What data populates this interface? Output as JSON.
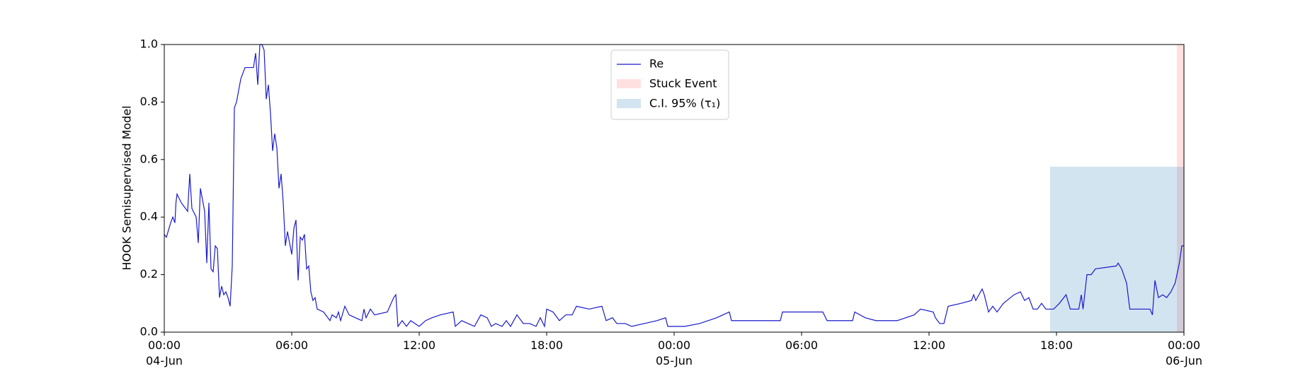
{
  "chart_data": {
    "type": "line",
    "ylabel": "HOOK Semisupervised Model",
    "xlim": [
      "1900-06-04 00:00",
      "1900-06-06 00:00"
    ],
    "xticks": [
      {
        "value": "1900-06-04 00:00",
        "label": "00:00\n04-Jun\n1900"
      },
      {
        "value": "1900-06-04 06:00",
        "label": "06:00"
      },
      {
        "value": "1900-06-04 12:00",
        "label": "12:00"
      },
      {
        "value": "1900-06-04 18:00",
        "label": "18:00"
      },
      {
        "value": "1900-06-05 00:00",
        "label": "00:00\n05-Jun"
      },
      {
        "value": "1900-06-05 06:00",
        "label": "06:00"
      },
      {
        "value": "1900-06-05 12:00",
        "label": "12:00"
      },
      {
        "value": "1900-06-05 18:00",
        "label": "18:00"
      },
      {
        "value": "1900-06-06 00:00",
        "label": "00:00\n06-Jun"
      }
    ],
    "ylim": [
      0,
      1
    ],
    "yticks": [
      {
        "value": 0,
        "label": "0.0"
      },
      0.2,
      0.4,
      0.6,
      0.8,
      {
        "value": 1,
        "label": "1.0"
      }
    ],
    "legend": "upper center",
    "spans": [
      {
        "name": "Stuck Event",
        "color": "#ff0000",
        "alpha": 0.12,
        "x": [
          "1900-06-05 23:40",
          "1900-06-06 00:00"
        ]
      },
      {
        "name": "C.I. 95% (τ₁)",
        "color": "#1f77b4",
        "alpha": 0.2,
        "x": [
          "1900-06-05 17:42",
          "1900-06-06 00:00"
        ],
        "top": 0.575
      }
    ],
    "series": [
      {
        "name": "Re",
        "color": "#1a1acc",
        "x": [
          "1900-06-04 00:00",
          "1900-06-04 00:06",
          "1900-06-04 00:18",
          "1900-06-04 00:24",
          "1900-06-04 00:30",
          "1900-06-04 00:33",
          "1900-06-04 00:36",
          "1900-06-04 00:48",
          "1900-06-04 01:00",
          "1900-06-04 01:06",
          "1900-06-04 01:12",
          "1900-06-04 01:18",
          "1900-06-04 01:30",
          "1900-06-04 01:36",
          "1900-06-04 01:42",
          "1900-06-04 01:54",
          "1900-06-04 02:00",
          "1900-06-04 02:06",
          "1900-06-04 02:12",
          "1900-06-04 02:18",
          "1900-06-04 02:24",
          "1900-06-04 02:30",
          "1900-06-04 02:36",
          "1900-06-04 02:42",
          "1900-06-04 02:48",
          "1900-06-04 02:54",
          "1900-06-04 03:00",
          "1900-06-04 03:06",
          "1900-06-04 03:12",
          "1900-06-04 03:18",
          "1900-06-04 03:24",
          "1900-06-04 03:36",
          "1900-06-04 03:48",
          "1900-06-04 04:00",
          "1900-06-04 04:12",
          "1900-06-04 04:18",
          "1900-06-04 04:24",
          "1900-06-04 04:30",
          "1900-06-04 04:36",
          "1900-06-04 04:42",
          "1900-06-04 04:48",
          "1900-06-04 04:54",
          "1900-06-04 05:00",
          "1900-06-04 05:06",
          "1900-06-04 05:12",
          "1900-06-04 05:18",
          "1900-06-04 05:24",
          "1900-06-04 05:30",
          "1900-06-04 05:36",
          "1900-06-04 05:42",
          "1900-06-04 05:48",
          "1900-06-04 06:00",
          "1900-06-04 06:06",
          "1900-06-04 06:12",
          "1900-06-04 06:18",
          "1900-06-04 06:24",
          "1900-06-04 06:30",
          "1900-06-04 06:36",
          "1900-06-04 06:42",
          "1900-06-04 06:48",
          "1900-06-04 06:54",
          "1900-06-04 07:00",
          "1900-06-04 07:06",
          "1900-06-04 07:12",
          "1900-06-04 07:30",
          "1900-06-04 07:42",
          "1900-06-04 07:48",
          "1900-06-04 07:54",
          "1900-06-04 08:06",
          "1900-06-04 08:12",
          "1900-06-04 08:18",
          "1900-06-04 08:30",
          "1900-06-04 08:42",
          "1900-06-04 09:00",
          "1900-06-04 09:18",
          "1900-06-04 09:24",
          "1900-06-04 09:30",
          "1900-06-04 09:42",
          "1900-06-04 09:54",
          "1900-06-04 10:30",
          "1900-06-04 10:48",
          "1900-06-04 10:54",
          "1900-06-04 11:00",
          "1900-06-04 11:12",
          "1900-06-04 11:24",
          "1900-06-04 11:36",
          "1900-06-04 12:00",
          "1900-06-04 12:18",
          "1900-06-04 12:36",
          "1900-06-04 13:00",
          "1900-06-04 13:36",
          "1900-06-04 13:42",
          "1900-06-04 14:00",
          "1900-06-04 14:18",
          "1900-06-04 14:36",
          "1900-06-04 14:54",
          "1900-06-04 15:12",
          "1900-06-04 15:24",
          "1900-06-04 15:36",
          "1900-06-04 15:54",
          "1900-06-04 16:06",
          "1900-06-04 16:18",
          "1900-06-04 16:36",
          "1900-06-04 16:54",
          "1900-06-04 17:12",
          "1900-06-04 17:30",
          "1900-06-04 17:42",
          "1900-06-04 17:54",
          "1900-06-04 18:00",
          "1900-06-04 18:18",
          "1900-06-04 18:36",
          "1900-06-04 18:54",
          "1900-06-04 19:12",
          "1900-06-04 19:24",
          "1900-06-04 20:00",
          "1900-06-04 20:36",
          "1900-06-04 20:48",
          "1900-06-04 21:06",
          "1900-06-04 21:18",
          "1900-06-04 21:42",
          "1900-06-04 22:00",
          "1900-06-04 22:36",
          "1900-06-04 23:12",
          "1900-06-04 23:36",
          "1900-06-04 23:42",
          "1900-06-05 00:30",
          "1900-06-05 01:12",
          "1900-06-05 02:00",
          "1900-06-05 02:36",
          "1900-06-05 02:42",
          "1900-06-05 05:00",
          "1900-06-05 05:06",
          "1900-06-05 07:00",
          "1900-06-05 07:12",
          "1900-06-05 08:24",
          "1900-06-05 08:30",
          "1900-06-05 09:00",
          "1900-06-05 09:30",
          "1900-06-05 10:30",
          "1900-06-05 11:18",
          "1900-06-05 11:36",
          "1900-06-05 12:12",
          "1900-06-05 12:18",
          "1900-06-05 12:30",
          "1900-06-05 12:42",
          "1900-06-05 12:54",
          "1900-06-05 13:30",
          "1900-06-05 14:00",
          "1900-06-05 14:06",
          "1900-06-05 14:12",
          "1900-06-05 14:30",
          "1900-06-05 14:36",
          "1900-06-05 14:48",
          "1900-06-05 15:00",
          "1900-06-05 15:12",
          "1900-06-05 15:30",
          "1900-06-05 16:00",
          "1900-06-05 16:18",
          "1900-06-05 16:30",
          "1900-06-05 16:42",
          "1900-06-05 16:54",
          "1900-06-05 17:06",
          "1900-06-05 17:18",
          "1900-06-05 17:30",
          "1900-06-05 17:52",
          "1900-06-05 18:08",
          "1900-06-05 18:27",
          "1900-06-05 18:39",
          "1900-06-05 19:03",
          "1900-06-05 19:10",
          "1900-06-05 19:15",
          "1900-06-05 19:26",
          "1900-06-05 19:38",
          "1900-06-05 19:50",
          "1900-06-05 20:49",
          "1900-06-05 20:54",
          "1900-06-05 21:04",
          "1900-06-05 21:18",
          "1900-06-05 21:27",
          "1900-06-05 22:24",
          "1900-06-05 22:31",
          "1900-06-05 22:38",
          "1900-06-05 22:48",
          "1900-06-05 23:00",
          "1900-06-05 23:11",
          "1900-06-05 23:23",
          "1900-06-05 23:35",
          "1900-06-05 23:47",
          "1900-06-05 23:54",
          "1900-06-06 00:00"
        ],
        "values": [
          0.34,
          0.33,
          0.38,
          0.4,
          0.38,
          0.45,
          0.48,
          0.45,
          0.43,
          0.42,
          0.55,
          0.43,
          0.4,
          0.31,
          0.5,
          0.42,
          0.24,
          0.45,
          0.22,
          0.21,
          0.3,
          0.29,
          0.12,
          0.16,
          0.13,
          0.14,
          0.12,
          0.09,
          0.23,
          0.78,
          0.8,
          0.88,
          0.92,
          0.92,
          0.92,
          0.97,
          0.86,
          1.0,
          1.0,
          0.98,
          0.81,
          0.86,
          0.76,
          0.63,
          0.69,
          0.64,
          0.5,
          0.55,
          0.45,
          0.3,
          0.35,
          0.27,
          0.36,
          0.39,
          0.18,
          0.33,
          0.32,
          0.34,
          0.22,
          0.23,
          0.14,
          0.11,
          0.12,
          0.08,
          0.07,
          0.05,
          0.04,
          0.06,
          0.05,
          0.07,
          0.04,
          0.09,
          0.06,
          0.05,
          0.04,
          0.08,
          0.05,
          0.08,
          0.06,
          0.07,
          0.12,
          0.13,
          0.02,
          0.04,
          0.02,
          0.04,
          0.02,
          0.04,
          0.05,
          0.06,
          0.07,
          0.02,
          0.04,
          0.03,
          0.02,
          0.06,
          0.05,
          0.02,
          0.03,
          0.02,
          0.04,
          0.02,
          0.06,
          0.03,
          0.03,
          0.02,
          0.05,
          0.02,
          0.08,
          0.07,
          0.04,
          0.06,
          0.06,
          0.09,
          0.08,
          0.09,
          0.04,
          0.05,
          0.03,
          0.03,
          0.02,
          0.03,
          0.04,
          0.05,
          0.02,
          0.02,
          0.03,
          0.05,
          0.07,
          0.04,
          0.04,
          0.07,
          0.07,
          0.04,
          0.04,
          0.07,
          0.05,
          0.04,
          0.04,
          0.06,
          0.08,
          0.07,
          0.05,
          0.03,
          0.03,
          0.09,
          0.1,
          0.11,
          0.13,
          0.11,
          0.15,
          0.13,
          0.07,
          0.09,
          0.07,
          0.1,
          0.13,
          0.14,
          0.11,
          0.12,
          0.08,
          0.08,
          0.1,
          0.08,
          0.08,
          0.1,
          0.13,
          0.08,
          0.08,
          0.13,
          0.08,
          0.2,
          0.2,
          0.22,
          0.23,
          0.24,
          0.22,
          0.17,
          0.08,
          0.08,
          0.06,
          0.18,
          0.12,
          0.13,
          0.12,
          0.14,
          0.17,
          0.24,
          0.3,
          0.3
        ]
      }
    ]
  }
}
